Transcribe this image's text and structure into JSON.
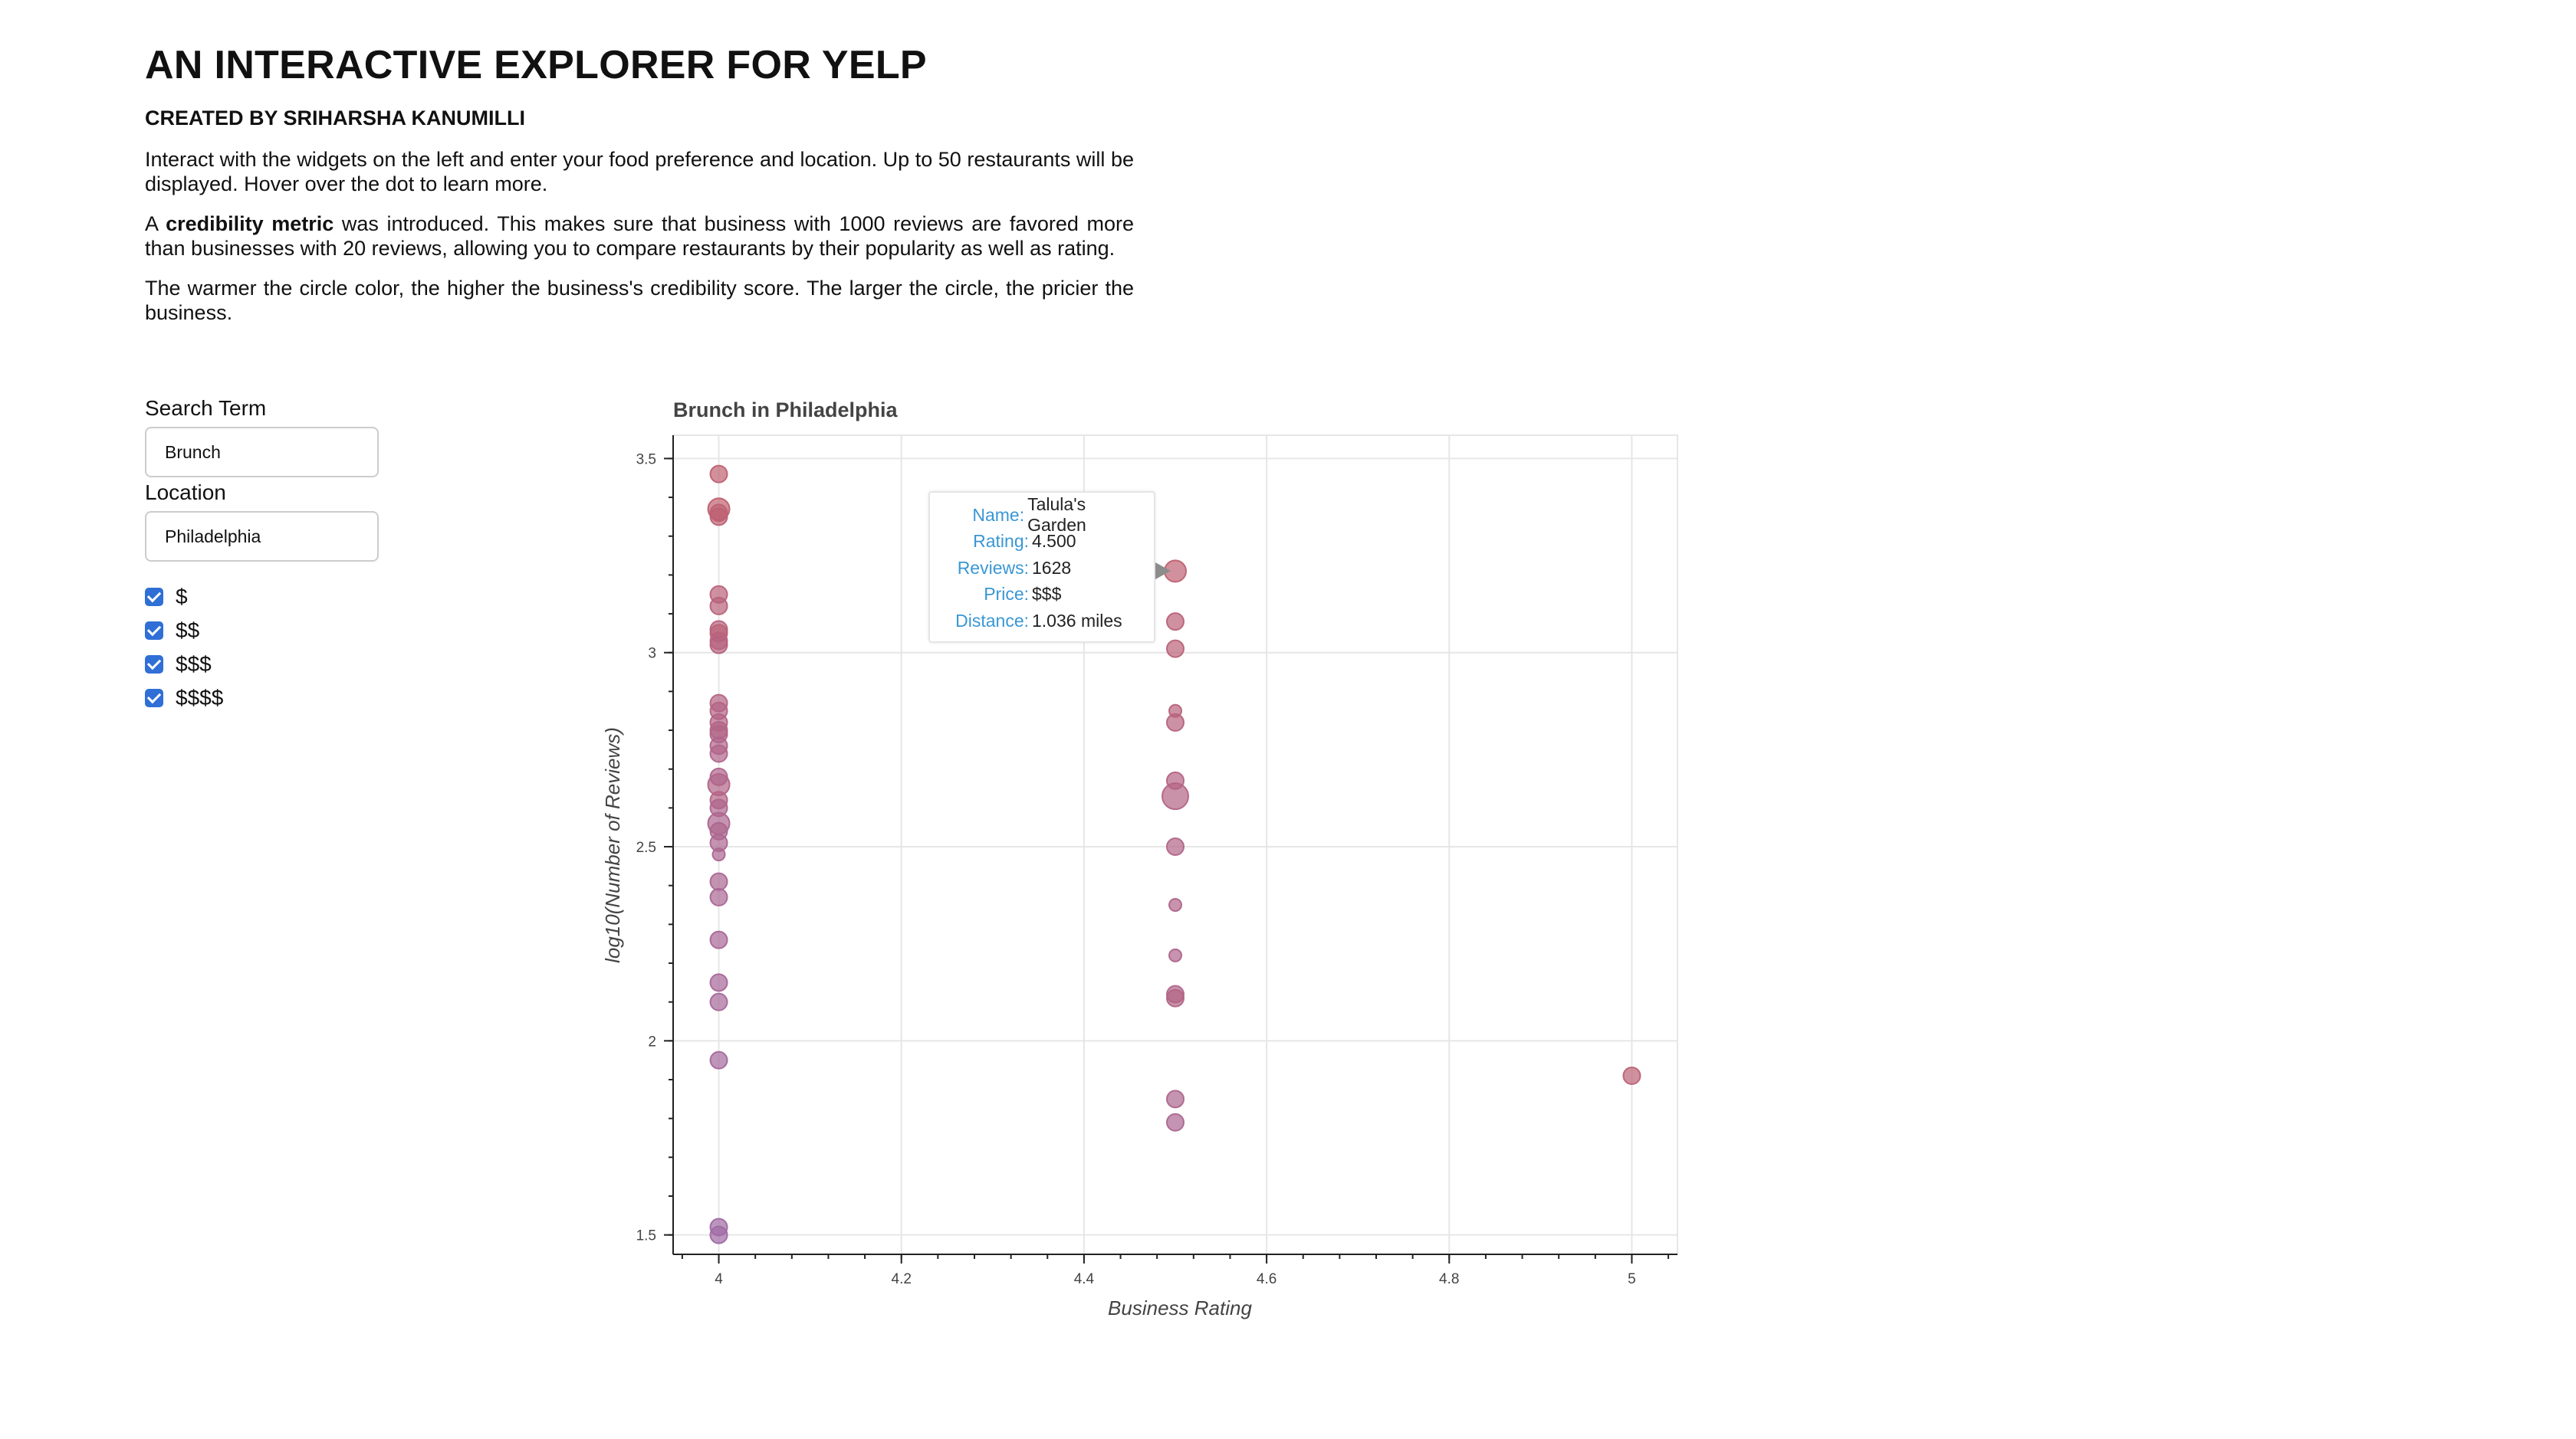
{
  "header": {
    "title": "AN INTERACTIVE EXPLORER FOR YELP",
    "subtitle": "CREATED BY SRIHARSHA KANUMILLI"
  },
  "intro": {
    "para1": "Interact with the widgets on the left and enter your food preference and location. Up to 50 restaurants will be displayed. Hover over the dot to learn more.",
    "para2_prefix": "A ",
    "para2_bold": "credibility metric",
    "para2_suffix": " was introduced. This makes sure that business with 1000 reviews are favored more than businesses with 20 reviews, allowing you to compare restaurants by their popularity as well as rating.",
    "para3": "The warmer the circle color, the higher the business's credibility score. The larger the circle, the pricier the business."
  },
  "widgets": {
    "search_label": "Search Term",
    "search_value": "Brunch",
    "location_label": "Location",
    "location_value": "Philadelphia",
    "price_options": [
      {
        "label": "$",
        "checked": true
      },
      {
        "label": "$$",
        "checked": true
      },
      {
        "label": "$$$",
        "checked": true
      },
      {
        "label": "$$$$",
        "checked": true
      }
    ],
    "checkbox_color": "#2f6fd6"
  },
  "tooltip": {
    "name_key": "Name:",
    "name_val": "Talula's Garden",
    "rating_key": "Rating:",
    "rating_val": "4.500",
    "reviews_key": "Reviews:",
    "reviews_val": "1628",
    "price_key": "Price:",
    "price_val": "$$$",
    "distance_key": "Distance:",
    "distance_val": "1.036 miles",
    "key_color": "#3a97d4"
  },
  "chart_data": {
    "type": "scatter",
    "title": "Brunch in Philadelphia",
    "xlabel": "Business Rating",
    "ylabel": "log10(Number of Reviews)",
    "xlim": [
      3.95,
      5.05
    ],
    "ylim": [
      1.45,
      3.56
    ],
    "x_ticks": [
      4,
      4.2,
      4.4,
      4.6,
      4.8,
      5
    ],
    "x_tick_labels": [
      "4",
      "4.2",
      "4.4",
      "4.6",
      "4.8",
      "5"
    ],
    "y_ticks": [
      1.5,
      2,
      2.5,
      3,
      3.5
    ],
    "y_tick_labels": [
      "1.5",
      "2",
      "2.5",
      "3",
      "3.5"
    ],
    "grid": true,
    "size_meaning": "price level (1-4)",
    "color_meaning": "credibility score (warmer = higher)",
    "colors": {
      "cool": "#9d6aa8",
      "warm": "#c2606c"
    },
    "points": [
      {
        "x": 4.0,
        "y": 3.46,
        "price": 2,
        "cred": 0.92
      },
      {
        "x": 4.0,
        "y": 3.37,
        "price": 3,
        "cred": 0.95
      },
      {
        "x": 4.0,
        "y": 3.36,
        "price": 2,
        "cred": 0.9
      },
      {
        "x": 4.0,
        "y": 3.35,
        "price": 2,
        "cred": 0.88
      },
      {
        "x": 4.0,
        "y": 3.15,
        "price": 2,
        "cred": 0.78
      },
      {
        "x": 4.0,
        "y": 3.12,
        "price": 2,
        "cred": 0.74
      },
      {
        "x": 4.0,
        "y": 3.06,
        "price": 2,
        "cred": 0.72
      },
      {
        "x": 4.0,
        "y": 3.05,
        "price": 2,
        "cred": 0.8
      },
      {
        "x": 4.0,
        "y": 3.03,
        "price": 2,
        "cred": 0.7
      },
      {
        "x": 4.0,
        "y": 3.02,
        "price": 2,
        "cred": 0.68
      },
      {
        "x": 4.0,
        "y": 2.87,
        "price": 2,
        "cred": 0.62
      },
      {
        "x": 4.0,
        "y": 2.85,
        "price": 2,
        "cred": 0.6
      },
      {
        "x": 4.0,
        "y": 2.82,
        "price": 2,
        "cred": 0.58
      },
      {
        "x": 4.0,
        "y": 2.8,
        "price": 2,
        "cred": 0.57
      },
      {
        "x": 4.0,
        "y": 2.79,
        "price": 2,
        "cred": 0.55
      },
      {
        "x": 4.0,
        "y": 2.76,
        "price": 2,
        "cred": 0.52
      },
      {
        "x": 4.0,
        "y": 2.74,
        "price": 2,
        "cred": 0.5
      },
      {
        "x": 4.0,
        "y": 2.68,
        "price": 2,
        "cred": 0.48
      },
      {
        "x": 4.0,
        "y": 2.66,
        "price": 3,
        "cred": 0.55
      },
      {
        "x": 4.0,
        "y": 2.62,
        "price": 2,
        "cred": 0.6
      },
      {
        "x": 4.0,
        "y": 2.6,
        "price": 2,
        "cred": 0.46
      },
      {
        "x": 4.0,
        "y": 2.56,
        "price": 3,
        "cred": 0.44
      },
      {
        "x": 4.0,
        "y": 2.54,
        "price": 2,
        "cred": 0.42
      },
      {
        "x": 4.0,
        "y": 2.51,
        "price": 2,
        "cred": 0.4
      },
      {
        "x": 4.0,
        "y": 2.48,
        "price": 1,
        "cred": 0.38
      },
      {
        "x": 4.0,
        "y": 2.41,
        "price": 2,
        "cred": 0.36
      },
      {
        "x": 4.0,
        "y": 2.37,
        "price": 2,
        "cred": 0.34
      },
      {
        "x": 4.0,
        "y": 2.26,
        "price": 2,
        "cred": 0.3
      },
      {
        "x": 4.0,
        "y": 2.15,
        "price": 2,
        "cred": 0.26
      },
      {
        "x": 4.0,
        "y": 2.1,
        "price": 2,
        "cred": 0.24
      },
      {
        "x": 4.0,
        "y": 1.95,
        "price": 2,
        "cred": 0.2
      },
      {
        "x": 4.0,
        "y": 1.52,
        "price": 2,
        "cred": 0.08
      },
      {
        "x": 4.0,
        "y": 1.5,
        "price": 2,
        "cred": 0.06
      },
      {
        "x": 4.5,
        "y": 3.21,
        "price": 3,
        "cred": 0.9
      },
      {
        "x": 4.5,
        "y": 3.08,
        "price": 2,
        "cred": 0.82
      },
      {
        "x": 4.5,
        "y": 3.01,
        "price": 2,
        "cred": 0.8
      },
      {
        "x": 4.5,
        "y": 2.85,
        "price": 1,
        "cred": 0.72
      },
      {
        "x": 4.5,
        "y": 2.82,
        "price": 2,
        "cred": 0.7
      },
      {
        "x": 4.5,
        "y": 2.67,
        "price": 2,
        "cred": 0.64
      },
      {
        "x": 4.5,
        "y": 2.63,
        "price": 4,
        "cred": 0.6
      },
      {
        "x": 4.5,
        "y": 2.5,
        "price": 2,
        "cred": 0.55
      },
      {
        "x": 4.5,
        "y": 2.35,
        "price": 1,
        "cred": 0.5
      },
      {
        "x": 4.5,
        "y": 2.22,
        "price": 1,
        "cred": 0.48
      },
      {
        "x": 4.5,
        "y": 2.12,
        "price": 2,
        "cred": 0.52
      },
      {
        "x": 4.5,
        "y": 2.11,
        "price": 2,
        "cred": 0.58
      },
      {
        "x": 4.5,
        "y": 1.85,
        "price": 2,
        "cred": 0.42
      },
      {
        "x": 4.5,
        "y": 1.79,
        "price": 2,
        "cred": 0.38
      },
      {
        "x": 5.0,
        "y": 1.91,
        "price": 2,
        "cred": 0.85
      }
    ]
  }
}
